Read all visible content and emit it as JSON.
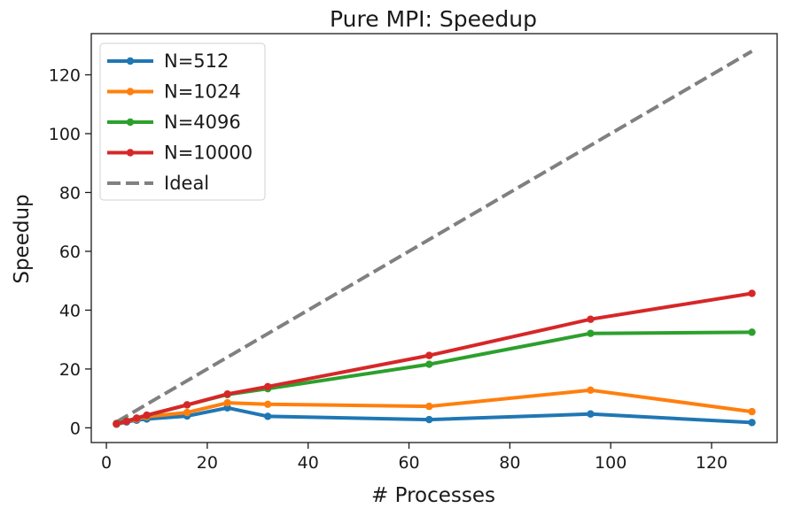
{
  "chart_data": {
    "type": "line",
    "title": "Pure MPI: Speedup",
    "xlabel": "# Processes",
    "ylabel": "Speedup",
    "xlim": [
      -3,
      133
    ],
    "ylim": [
      -5,
      134
    ],
    "xticks": [
      0,
      20,
      40,
      60,
      80,
      100,
      120
    ],
    "yticks": [
      0,
      20,
      40,
      60,
      80,
      100,
      120
    ],
    "grid": false,
    "legend_position": "top-left",
    "series": [
      {
        "name": "N=512",
        "color": "#1f77b4",
        "style": "solid-markers",
        "x": [
          2,
          4,
          6,
          8,
          16,
          24,
          32,
          64,
          96,
          128
        ],
        "y": [
          1.2,
          2.0,
          2.6,
          3.0,
          4.0,
          6.8,
          3.9,
          2.8,
          4.7,
          1.8
        ]
      },
      {
        "name": "N=1024",
        "color": "#ff7f0e",
        "style": "solid-markers",
        "x": [
          2,
          4,
          6,
          8,
          16,
          24,
          32,
          64,
          96,
          128
        ],
        "y": [
          1.3,
          2.2,
          3.0,
          3.8,
          5.2,
          8.5,
          8.0,
          7.3,
          12.8,
          5.5
        ]
      },
      {
        "name": "N=4096",
        "color": "#2ca02c",
        "style": "solid-markers",
        "x": [
          2,
          4,
          6,
          8,
          16,
          24,
          32,
          64,
          96,
          128
        ],
        "y": [
          1.5,
          2.3,
          3.3,
          4.2,
          7.8,
          11.3,
          13.3,
          21.6,
          32.1,
          32.5
        ]
      },
      {
        "name": "N=10000",
        "color": "#d62728",
        "style": "solid-markers",
        "x": [
          2,
          4,
          6,
          8,
          16,
          24,
          32,
          64,
          96,
          128
        ],
        "y": [
          1.4,
          2.2,
          3.3,
          4.3,
          7.8,
          11.5,
          14.0,
          24.6,
          36.9,
          45.7
        ]
      },
      {
        "name": "Ideal",
        "color": "#808080",
        "style": "dashed",
        "x": [
          2,
          128
        ],
        "y": [
          2,
          128
        ]
      }
    ]
  }
}
